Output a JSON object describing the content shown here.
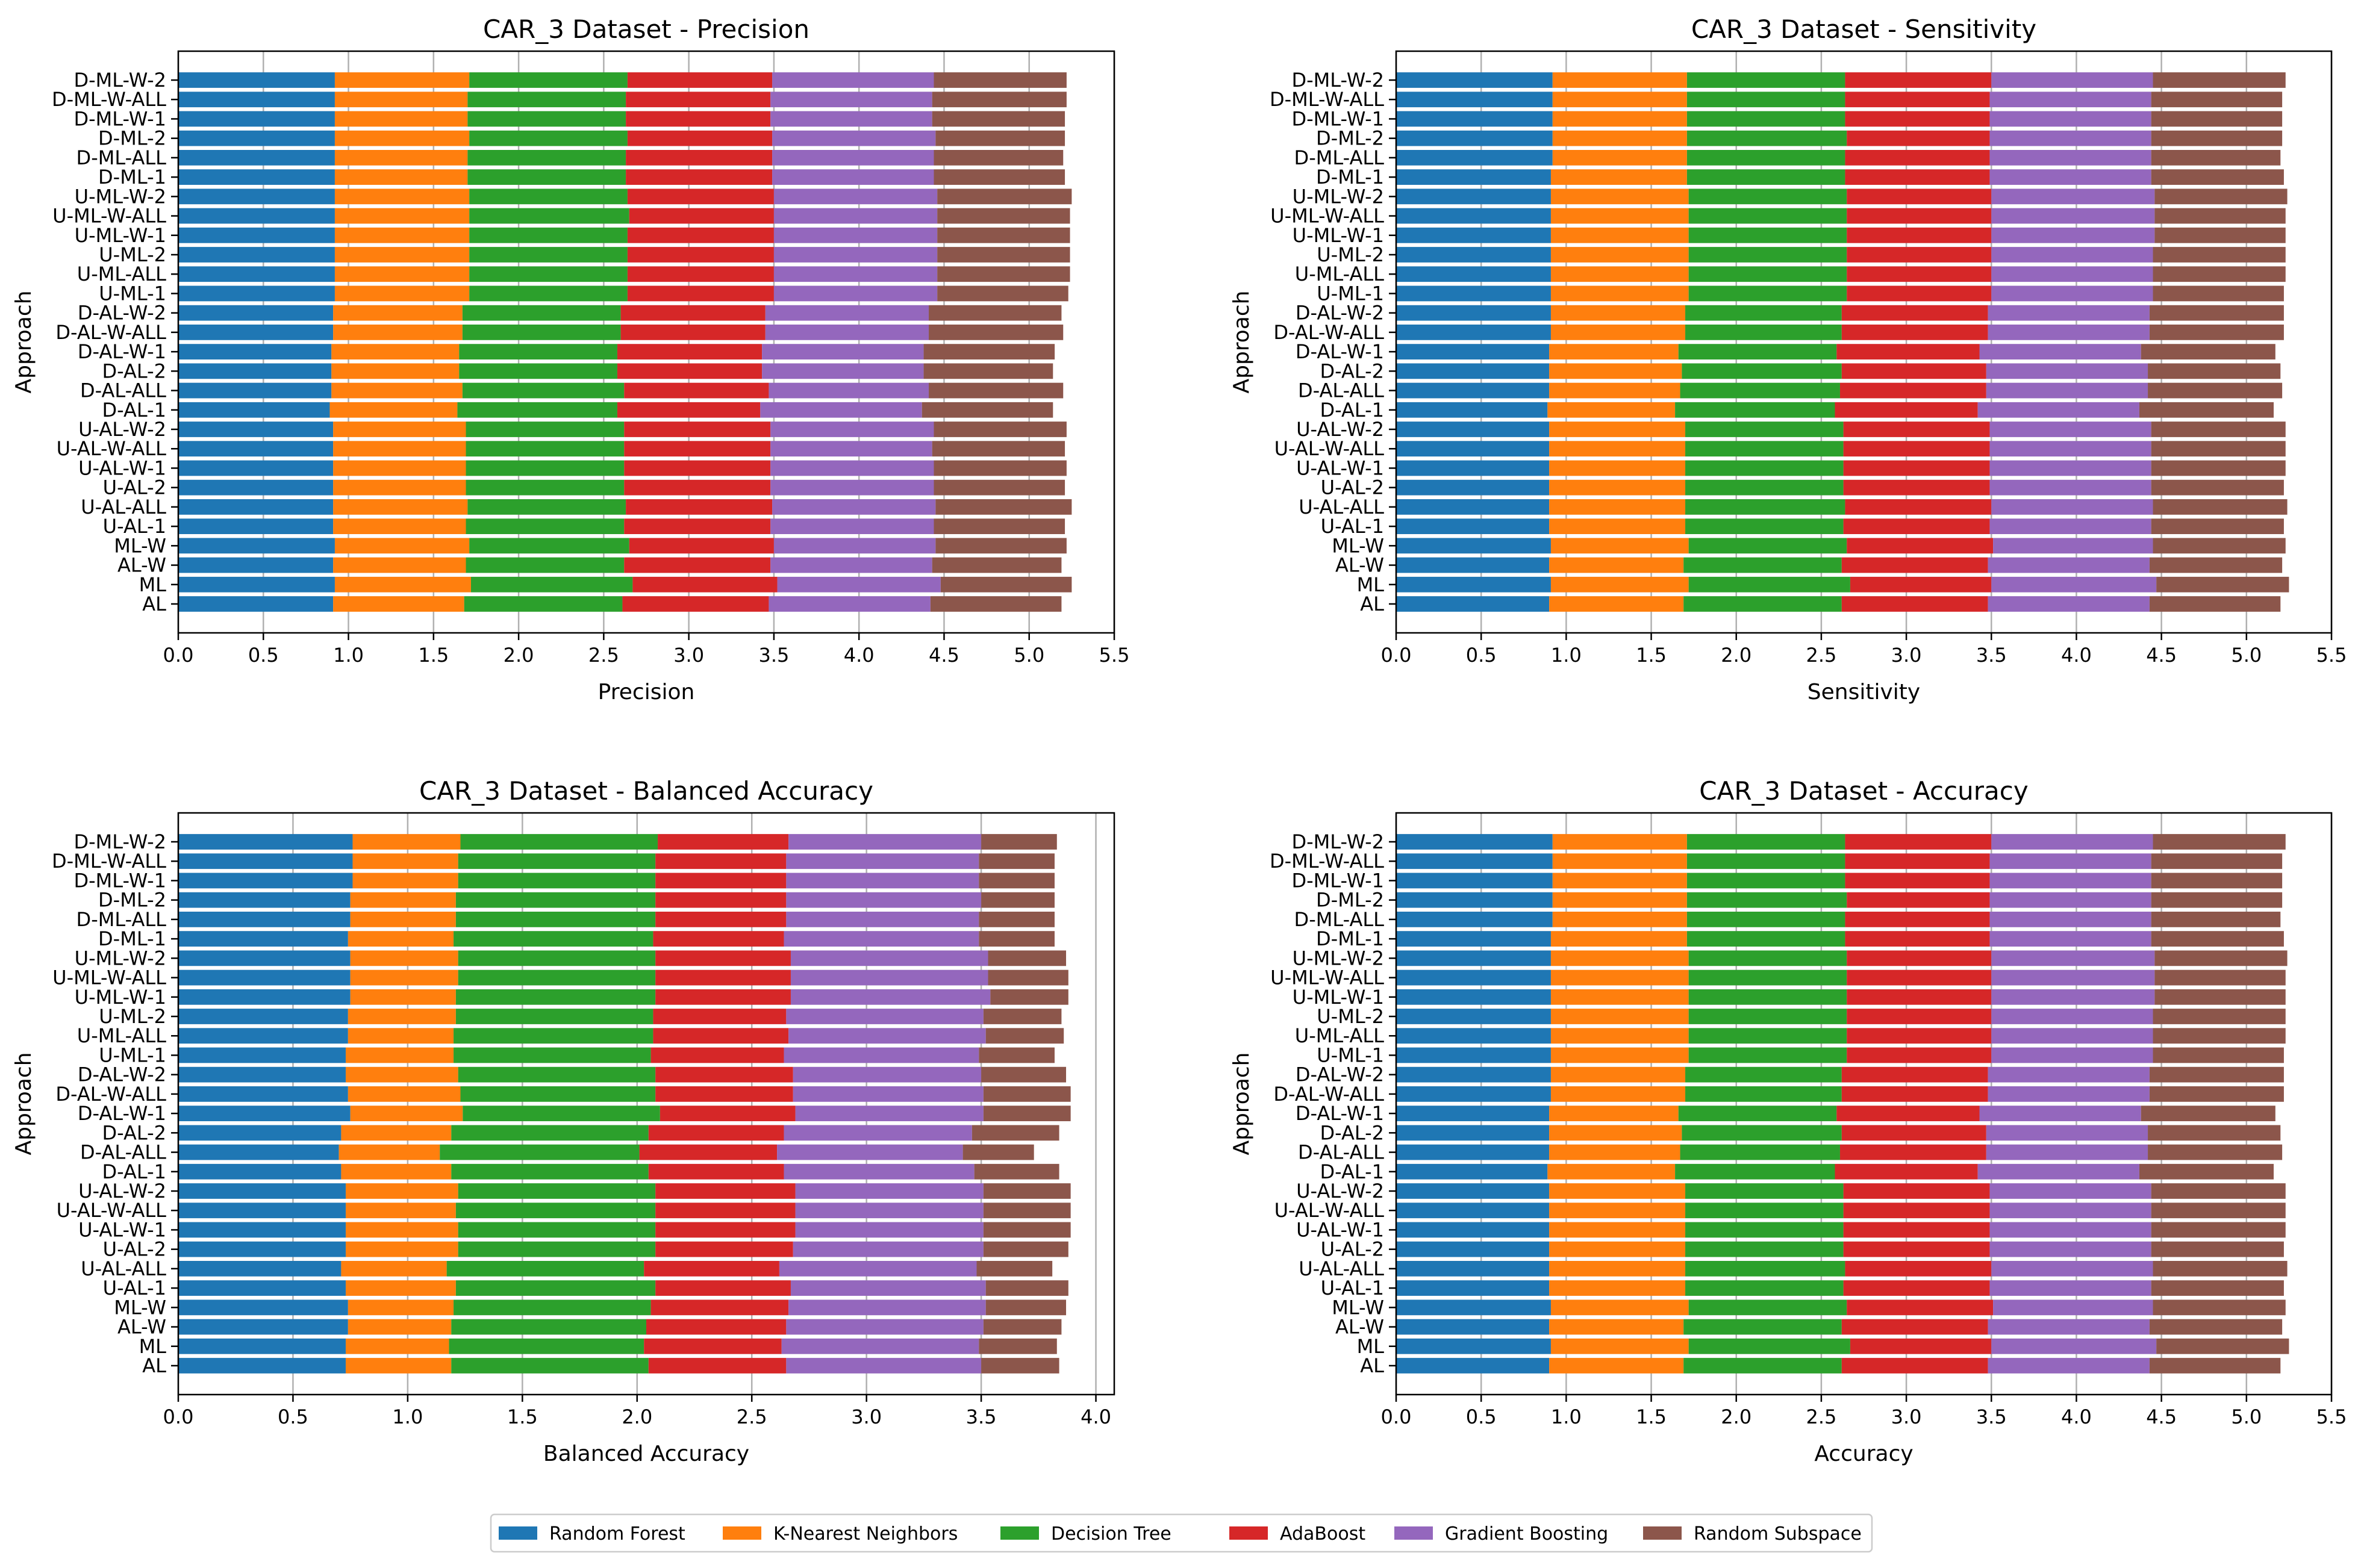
{
  "legend": {
    "entries": [
      {
        "name": "Random Forest",
        "color": "#1f77b4"
      },
      {
        "name": "K-Nearest Neighbors",
        "color": "#ff7f0e"
      },
      {
        "name": "Decision Tree",
        "color": "#2ca02c"
      },
      {
        "name": "AdaBoost",
        "color": "#d62728"
      },
      {
        "name": "Gradient Boosting",
        "color": "#9467bd"
      },
      {
        "name": "Random Subspace",
        "color": "#8c564b"
      }
    ]
  },
  "chart_data": [
    {
      "type": "bar",
      "orientation": "horizontal",
      "stacked": true,
      "title": "CAR_3 Dataset - Precision",
      "xlabel": "Precision",
      "ylabel": "Approach",
      "xlim": [
        0,
        5.5
      ],
      "xticks": [
        "0.0",
        "0.5",
        "1.0",
        "1.5",
        "2.0",
        "2.5",
        "3.0",
        "3.5",
        "4.0",
        "4.5",
        "5.0",
        "5.5"
      ],
      "grid": "x",
      "categories": [
        "AL",
        "ML",
        "AL-W",
        "ML-W",
        "U-AL-1",
        "U-AL-ALL",
        "U-AL-2",
        "U-AL-W-1",
        "U-AL-W-ALL",
        "U-AL-W-2",
        "D-AL-1",
        "D-AL-ALL",
        "D-AL-2",
        "D-AL-W-1",
        "D-AL-W-ALL",
        "D-AL-W-2",
        "U-ML-1",
        "U-ML-ALL",
        "U-ML-2",
        "U-ML-W-1",
        "U-ML-W-ALL",
        "U-ML-W-2",
        "D-ML-1",
        "D-ML-ALL",
        "D-ML-2",
        "D-ML-W-1",
        "D-ML-W-ALL",
        "D-ML-W-2"
      ],
      "series": [
        {
          "name": "Random Forest",
          "values": [
            0.91,
            0.92,
            0.91,
            0.92,
            0.91,
            0.91,
            0.91,
            0.91,
            0.91,
            0.91,
            0.89,
            0.9,
            0.9,
            0.9,
            0.91,
            0.91,
            0.92,
            0.92,
            0.92,
            0.92,
            0.92,
            0.92,
            0.92,
            0.92,
            0.92,
            0.92,
            0.92,
            0.92
          ]
        },
        {
          "name": "K-Nearest Neighbors",
          "values": [
            0.77,
            0.8,
            0.78,
            0.79,
            0.78,
            0.79,
            0.78,
            0.78,
            0.78,
            0.78,
            0.75,
            0.77,
            0.75,
            0.75,
            0.76,
            0.76,
            0.79,
            0.79,
            0.79,
            0.79,
            0.79,
            0.79,
            0.78,
            0.78,
            0.79,
            0.78,
            0.78,
            0.79
          ]
        },
        {
          "name": "Decision Tree",
          "values": [
            0.93,
            0.95,
            0.93,
            0.94,
            0.93,
            0.93,
            0.93,
            0.93,
            0.93,
            0.93,
            0.94,
            0.95,
            0.93,
            0.93,
            0.93,
            0.93,
            0.93,
            0.93,
            0.93,
            0.93,
            0.94,
            0.93,
            0.93,
            0.93,
            0.93,
            0.93,
            0.93,
            0.93
          ]
        },
        {
          "name": "AdaBoost",
          "values": [
            0.86,
            0.85,
            0.86,
            0.85,
            0.86,
            0.86,
            0.86,
            0.86,
            0.86,
            0.86,
            0.84,
            0.85,
            0.85,
            0.85,
            0.85,
            0.85,
            0.86,
            0.86,
            0.86,
            0.86,
            0.85,
            0.86,
            0.86,
            0.86,
            0.85,
            0.85,
            0.85,
            0.85
          ]
        },
        {
          "name": "Gradient Boosting",
          "values": [
            0.95,
            0.96,
            0.95,
            0.95,
            0.96,
            0.96,
            0.96,
            0.96,
            0.95,
            0.96,
            0.95,
            0.94,
            0.95,
            0.95,
            0.96,
            0.96,
            0.96,
            0.96,
            0.96,
            0.96,
            0.96,
            0.96,
            0.95,
            0.95,
            0.96,
            0.95,
            0.95,
            0.95
          ]
        },
        {
          "name": "Random Subspace",
          "values": [
            0.77,
            0.77,
            0.76,
            0.77,
            0.77,
            0.8,
            0.77,
            0.78,
            0.78,
            0.78,
            0.77,
            0.79,
            0.76,
            0.77,
            0.79,
            0.78,
            0.77,
            0.78,
            0.78,
            0.78,
            0.78,
            0.79,
            0.77,
            0.76,
            0.76,
            0.78,
            0.79,
            0.78
          ]
        }
      ]
    },
    {
      "type": "bar",
      "orientation": "horizontal",
      "stacked": true,
      "title": "CAR_3 Dataset - Sensitivity",
      "xlabel": "Sensitivity",
      "ylabel": "Approach",
      "xlim": [
        0,
        5.5
      ],
      "xticks": [
        "0.0",
        "0.5",
        "1.0",
        "1.5",
        "2.0",
        "2.5",
        "3.0",
        "3.5",
        "4.0",
        "4.5",
        "5.0",
        "5.5"
      ],
      "grid": "x",
      "categories": [
        "AL",
        "ML",
        "AL-W",
        "ML-W",
        "U-AL-1",
        "U-AL-ALL",
        "U-AL-2",
        "U-AL-W-1",
        "U-AL-W-ALL",
        "U-AL-W-2",
        "D-AL-1",
        "D-AL-ALL",
        "D-AL-2",
        "D-AL-W-1",
        "D-AL-W-ALL",
        "D-AL-W-2",
        "U-ML-1",
        "U-ML-ALL",
        "U-ML-2",
        "U-ML-W-1",
        "U-ML-W-ALL",
        "U-ML-W-2",
        "D-ML-1",
        "D-ML-ALL",
        "D-ML-2",
        "D-ML-W-1",
        "D-ML-W-ALL",
        "D-ML-W-2"
      ],
      "series": [
        {
          "name": "Random Forest",
          "values": [
            0.9,
            0.91,
            0.9,
            0.91,
            0.9,
            0.9,
            0.9,
            0.9,
            0.9,
            0.9,
            0.89,
            0.9,
            0.9,
            0.9,
            0.91,
            0.91,
            0.91,
            0.91,
            0.91,
            0.91,
            0.91,
            0.91,
            0.91,
            0.92,
            0.92,
            0.92,
            0.92,
            0.92
          ]
        },
        {
          "name": "K-Nearest Neighbors",
          "values": [
            0.79,
            0.81,
            0.79,
            0.81,
            0.8,
            0.8,
            0.8,
            0.8,
            0.8,
            0.8,
            0.75,
            0.77,
            0.78,
            0.76,
            0.79,
            0.79,
            0.81,
            0.81,
            0.81,
            0.81,
            0.81,
            0.81,
            0.8,
            0.79,
            0.79,
            0.79,
            0.79,
            0.79
          ]
        },
        {
          "name": "Decision Tree",
          "values": [
            0.93,
            0.95,
            0.93,
            0.93,
            0.93,
            0.94,
            0.93,
            0.93,
            0.93,
            0.93,
            0.94,
            0.94,
            0.94,
            0.93,
            0.92,
            0.92,
            0.93,
            0.93,
            0.93,
            0.93,
            0.93,
            0.93,
            0.93,
            0.93,
            0.94,
            0.93,
            0.93,
            0.93
          ]
        },
        {
          "name": "AdaBoost",
          "values": [
            0.86,
            0.83,
            0.86,
            0.86,
            0.86,
            0.86,
            0.86,
            0.86,
            0.86,
            0.86,
            0.84,
            0.86,
            0.85,
            0.84,
            0.86,
            0.86,
            0.85,
            0.85,
            0.85,
            0.85,
            0.85,
            0.85,
            0.85,
            0.85,
            0.84,
            0.85,
            0.85,
            0.86
          ]
        },
        {
          "name": "Gradient Boosting",
          "values": [
            0.95,
            0.97,
            0.95,
            0.94,
            0.95,
            0.95,
            0.95,
            0.95,
            0.95,
            0.95,
            0.95,
            0.95,
            0.95,
            0.95,
            0.95,
            0.95,
            0.95,
            0.95,
            0.95,
            0.96,
            0.96,
            0.96,
            0.95,
            0.95,
            0.95,
            0.95,
            0.95,
            0.95
          ]
        },
        {
          "name": "Random Subspace",
          "values": [
            0.77,
            0.78,
            0.78,
            0.78,
            0.78,
            0.79,
            0.78,
            0.79,
            0.79,
            0.79,
            0.79,
            0.79,
            0.78,
            0.79,
            0.79,
            0.79,
            0.77,
            0.78,
            0.78,
            0.77,
            0.77,
            0.78,
            0.78,
            0.76,
            0.77,
            0.77,
            0.77,
            0.78
          ]
        }
      ]
    },
    {
      "type": "bar",
      "orientation": "horizontal",
      "stacked": true,
      "title": "CAR_3 Dataset - Balanced Accuracy",
      "xlabel": "Balanced Accuracy",
      "ylabel": "Approach",
      "xlim": [
        0,
        4.08
      ],
      "xticks": [
        "0.0",
        "0.5",
        "1.0",
        "1.5",
        "2.0",
        "2.5",
        "3.0",
        "3.5",
        "4.0"
      ],
      "grid": "x",
      "categories": [
        "AL",
        "ML",
        "AL-W",
        "ML-W",
        "U-AL-1",
        "U-AL-ALL",
        "U-AL-2",
        "U-AL-W-1",
        "U-AL-W-ALL",
        "U-AL-W-2",
        "D-AL-1",
        "D-AL-ALL",
        "D-AL-2",
        "D-AL-W-1",
        "D-AL-W-ALL",
        "D-AL-W-2",
        "U-ML-1",
        "U-ML-ALL",
        "U-ML-2",
        "U-ML-W-1",
        "U-ML-W-ALL",
        "U-ML-W-2",
        "D-ML-1",
        "D-ML-ALL",
        "D-ML-2",
        "D-ML-W-1",
        "D-ML-W-ALL",
        "D-ML-W-2"
      ],
      "series": [
        {
          "name": "Random Forest",
          "values": [
            0.73,
            0.73,
            0.74,
            0.74,
            0.73,
            0.71,
            0.73,
            0.73,
            0.73,
            0.73,
            0.71,
            0.7,
            0.71,
            0.75,
            0.74,
            0.73,
            0.73,
            0.74,
            0.74,
            0.75,
            0.75,
            0.75,
            0.74,
            0.75,
            0.75,
            0.76,
            0.76,
            0.76
          ]
        },
        {
          "name": "K-Nearest Neighbors",
          "values": [
            0.46,
            0.45,
            0.45,
            0.46,
            0.48,
            0.46,
            0.49,
            0.49,
            0.48,
            0.49,
            0.48,
            0.44,
            0.48,
            0.49,
            0.49,
            0.49,
            0.47,
            0.46,
            0.47,
            0.46,
            0.47,
            0.47,
            0.46,
            0.46,
            0.46,
            0.46,
            0.46,
            0.47
          ]
        },
        {
          "name": "Decision Tree",
          "values": [
            0.86,
            0.85,
            0.85,
            0.86,
            0.87,
            0.86,
            0.86,
            0.86,
            0.87,
            0.86,
            0.86,
            0.87,
            0.86,
            0.86,
            0.85,
            0.86,
            0.86,
            0.87,
            0.86,
            0.87,
            0.86,
            0.86,
            0.87,
            0.87,
            0.87,
            0.86,
            0.86,
            0.86
          ]
        },
        {
          "name": "AdaBoost",
          "values": [
            0.6,
            0.6,
            0.61,
            0.6,
            0.59,
            0.59,
            0.6,
            0.61,
            0.61,
            0.61,
            0.59,
            0.6,
            0.59,
            0.59,
            0.6,
            0.6,
            0.58,
            0.59,
            0.58,
            0.59,
            0.59,
            0.59,
            0.57,
            0.57,
            0.57,
            0.57,
            0.57,
            0.57
          ]
        },
        {
          "name": "Gradient Boosting",
          "values": [
            0.85,
            0.86,
            0.86,
            0.86,
            0.85,
            0.86,
            0.83,
            0.82,
            0.82,
            0.82,
            0.83,
            0.81,
            0.82,
            0.82,
            0.83,
            0.82,
            0.85,
            0.86,
            0.86,
            0.87,
            0.86,
            0.86,
            0.85,
            0.84,
            0.85,
            0.84,
            0.84,
            0.84
          ]
        },
        {
          "name": "Random Subspace",
          "values": [
            0.34,
            0.34,
            0.34,
            0.35,
            0.36,
            0.33,
            0.37,
            0.38,
            0.38,
            0.38,
            0.37,
            0.31,
            0.38,
            0.38,
            0.38,
            0.37,
            0.33,
            0.34,
            0.34,
            0.34,
            0.35,
            0.34,
            0.33,
            0.33,
            0.32,
            0.33,
            0.33,
            0.33
          ]
        }
      ]
    },
    {
      "type": "bar",
      "orientation": "horizontal",
      "stacked": true,
      "title": "CAR_3 Dataset - Accuracy",
      "xlabel": "Accuracy",
      "ylabel": "Approach",
      "xlim": [
        0,
        5.5
      ],
      "xticks": [
        "0.0",
        "0.5",
        "1.0",
        "1.5",
        "2.0",
        "2.5",
        "3.0",
        "3.5",
        "4.0",
        "4.5",
        "5.0",
        "5.5"
      ],
      "grid": "x",
      "categories": [
        "AL",
        "ML",
        "AL-W",
        "ML-W",
        "U-AL-1",
        "U-AL-ALL",
        "U-AL-2",
        "U-AL-W-1",
        "U-AL-W-ALL",
        "U-AL-W-2",
        "D-AL-1",
        "D-AL-ALL",
        "D-AL-2",
        "D-AL-W-1",
        "D-AL-W-ALL",
        "D-AL-W-2",
        "U-ML-1",
        "U-ML-ALL",
        "U-ML-2",
        "U-ML-W-1",
        "U-ML-W-ALL",
        "U-ML-W-2",
        "D-ML-1",
        "D-ML-ALL",
        "D-ML-2",
        "D-ML-W-1",
        "D-ML-W-ALL",
        "D-ML-W-2"
      ],
      "series": [
        {
          "name": "Random Forest",
          "values": [
            0.9,
            0.91,
            0.9,
            0.91,
            0.9,
            0.9,
            0.9,
            0.9,
            0.9,
            0.9,
            0.89,
            0.9,
            0.9,
            0.9,
            0.91,
            0.91,
            0.91,
            0.91,
            0.91,
            0.91,
            0.91,
            0.91,
            0.91,
            0.92,
            0.92,
            0.92,
            0.92,
            0.92
          ]
        },
        {
          "name": "K-Nearest Neighbors",
          "values": [
            0.79,
            0.81,
            0.79,
            0.81,
            0.8,
            0.8,
            0.8,
            0.8,
            0.8,
            0.8,
            0.75,
            0.77,
            0.78,
            0.76,
            0.79,
            0.79,
            0.81,
            0.81,
            0.81,
            0.81,
            0.81,
            0.81,
            0.8,
            0.79,
            0.79,
            0.79,
            0.79,
            0.79
          ]
        },
        {
          "name": "Decision Tree",
          "values": [
            0.93,
            0.95,
            0.93,
            0.93,
            0.93,
            0.94,
            0.93,
            0.93,
            0.93,
            0.93,
            0.94,
            0.94,
            0.94,
            0.93,
            0.92,
            0.92,
            0.93,
            0.93,
            0.93,
            0.93,
            0.93,
            0.93,
            0.93,
            0.93,
            0.94,
            0.93,
            0.93,
            0.93
          ]
        },
        {
          "name": "AdaBoost",
          "values": [
            0.86,
            0.83,
            0.86,
            0.86,
            0.86,
            0.86,
            0.86,
            0.86,
            0.86,
            0.86,
            0.84,
            0.86,
            0.85,
            0.84,
            0.86,
            0.86,
            0.85,
            0.85,
            0.85,
            0.85,
            0.85,
            0.85,
            0.85,
            0.85,
            0.84,
            0.85,
            0.85,
            0.86
          ]
        },
        {
          "name": "Gradient Boosting",
          "values": [
            0.95,
            0.97,
            0.95,
            0.94,
            0.95,
            0.95,
            0.95,
            0.95,
            0.95,
            0.95,
            0.95,
            0.95,
            0.95,
            0.95,
            0.95,
            0.95,
            0.95,
            0.95,
            0.95,
            0.96,
            0.96,
            0.96,
            0.95,
            0.95,
            0.95,
            0.95,
            0.95,
            0.95
          ]
        },
        {
          "name": "Random Subspace",
          "values": [
            0.77,
            0.78,
            0.78,
            0.78,
            0.78,
            0.79,
            0.78,
            0.79,
            0.79,
            0.79,
            0.79,
            0.79,
            0.78,
            0.79,
            0.79,
            0.79,
            0.77,
            0.78,
            0.78,
            0.77,
            0.77,
            0.78,
            0.78,
            0.76,
            0.77,
            0.77,
            0.77,
            0.78
          ]
        }
      ]
    }
  ]
}
